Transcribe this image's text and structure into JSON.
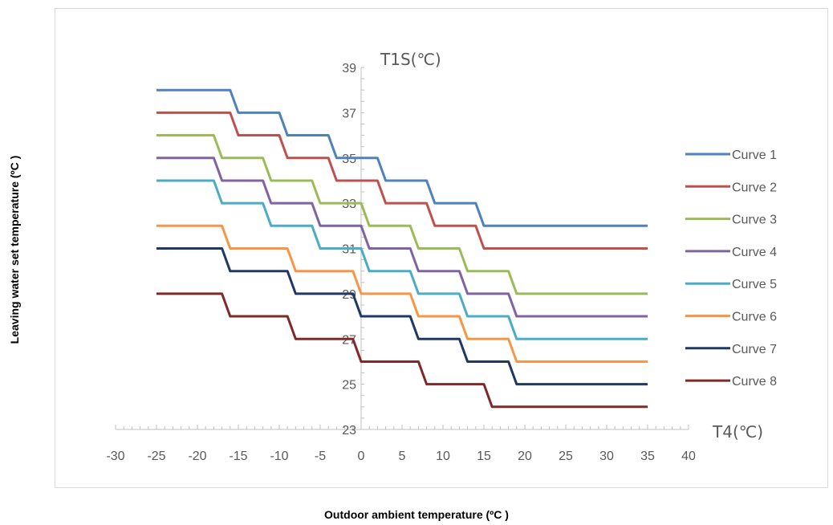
{
  "chart_data": {
    "type": "line",
    "xlabel": "Outdoor ambient temperature (ºC )",
    "ylabel": "Leaving water set temperature (ºC )",
    "x_axis_title": "T4(℃)",
    "y_axis_title": "T1S(℃)",
    "xlim": [
      -30,
      40
    ],
    "ylim": [
      23,
      39
    ],
    "x_ticks": [
      -30,
      -25,
      -20,
      -15,
      -10,
      -5,
      0,
      5,
      10,
      15,
      20,
      25,
      30,
      35,
      40
    ],
    "y_ticks": [
      23,
      25,
      27,
      29,
      31,
      33,
      35,
      37,
      39
    ],
    "grid": false,
    "legend_position": "right",
    "series": [
      {
        "name": "Curve 1",
        "color": "#4F81BD",
        "x": [
          -25,
          -16,
          -15,
          -10,
          -9,
          -4,
          -3,
          2,
          3,
          8,
          9,
          14,
          15,
          35
        ],
        "y": [
          38,
          38,
          37,
          37,
          36,
          36,
          35,
          35,
          34,
          34,
          33,
          33,
          32,
          32
        ]
      },
      {
        "name": "Curve 2",
        "color": "#C0504D",
        "x": [
          -25,
          -16,
          -15,
          -10,
          -9,
          -4,
          -3,
          2,
          3,
          8,
          9,
          14,
          15,
          35
        ],
        "y": [
          37,
          37,
          36,
          36,
          35,
          35,
          34,
          34,
          33,
          33,
          32,
          32,
          31,
          31
        ]
      },
      {
        "name": "Curve 3",
        "color": "#9BBB59",
        "x": [
          -25,
          -18,
          -17,
          -12,
          -11,
          -6,
          -5,
          0,
          1,
          6,
          7,
          12,
          13,
          18,
          19,
          35
        ],
        "y": [
          36,
          36,
          35,
          35,
          34,
          34,
          33,
          33,
          32,
          32,
          31,
          31,
          30,
          30,
          29,
          29
        ]
      },
      {
        "name": "Curve 4",
        "color": "#8064A2",
        "x": [
          -25,
          -18,
          -17,
          -12,
          -11,
          -6,
          -5,
          0,
          1,
          6,
          7,
          12,
          13,
          18,
          19,
          35
        ],
        "y": [
          35,
          35,
          34,
          34,
          33,
          33,
          32,
          32,
          31,
          31,
          30,
          30,
          29,
          29,
          28,
          28
        ]
      },
      {
        "name": "Curve 5",
        "color": "#4BACC6",
        "x": [
          -25,
          -18,
          -17,
          -12,
          -11,
          -6,
          -5,
          0,
          1,
          6,
          7,
          12,
          13,
          18,
          19,
          35
        ],
        "y": [
          34,
          34,
          33,
          33,
          32,
          32,
          31,
          31,
          30,
          30,
          29,
          29,
          28,
          28,
          27,
          27
        ]
      },
      {
        "name": "Curve 6",
        "color": "#F79646",
        "x": [
          -25,
          -17,
          -16,
          -9,
          -8,
          -1,
          0,
          6,
          7,
          12,
          13,
          18,
          19,
          35
        ],
        "y": [
          32,
          32,
          31,
          31,
          30,
          30,
          29,
          29,
          28,
          28,
          27,
          27,
          26,
          26
        ]
      },
      {
        "name": "Curve 7",
        "color": "#1F3864",
        "x": [
          -25,
          -17,
          -16,
          -9,
          -8,
          -1,
          0,
          6,
          7,
          12,
          13,
          18,
          19,
          35
        ],
        "y": [
          31,
          31,
          30,
          30,
          29,
          29,
          28,
          28,
          27,
          27,
          26,
          26,
          25,
          25
        ]
      },
      {
        "name": "Curve 8",
        "color": "#7F2A2A",
        "x": [
          -25,
          -17,
          -16,
          -9,
          -8,
          -1,
          0,
          7,
          8,
          15,
          16,
          35
        ],
        "y": [
          29,
          29,
          28,
          28,
          27,
          27,
          26,
          26,
          25,
          25,
          24,
          24
        ]
      }
    ]
  }
}
